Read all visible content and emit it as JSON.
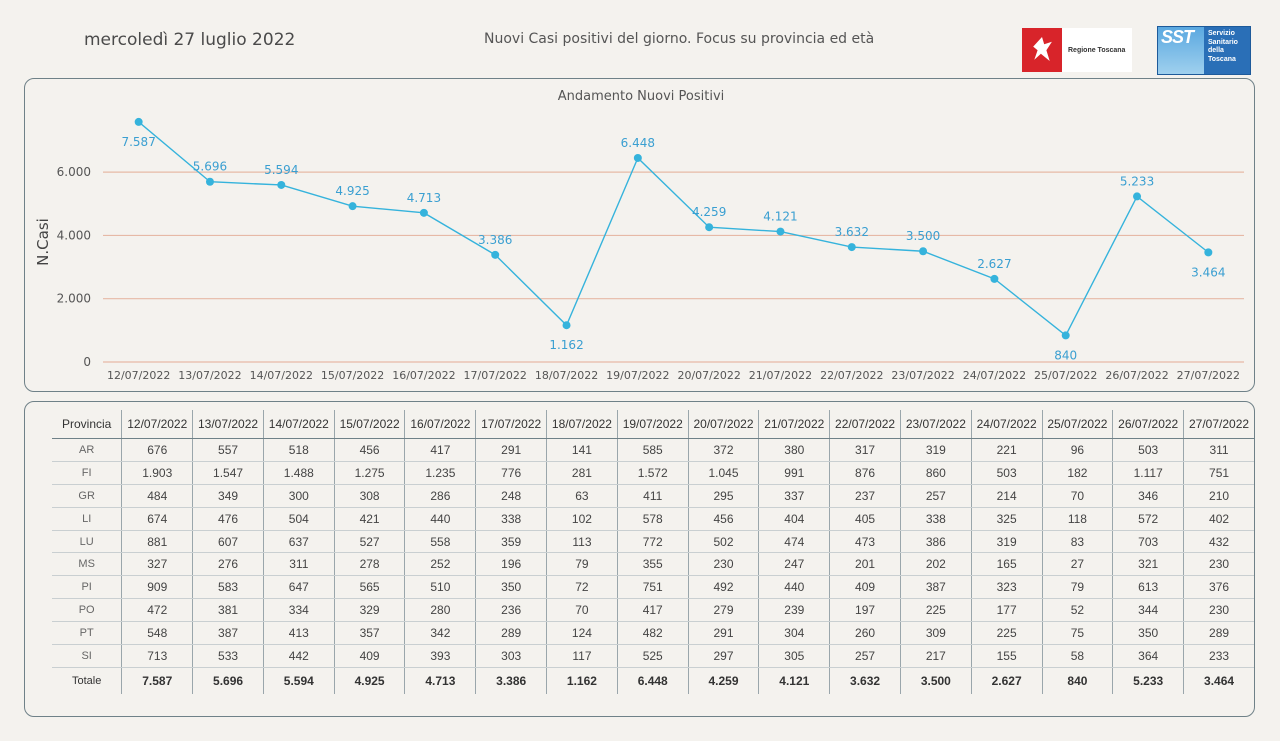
{
  "header": {
    "date": "mercoledì 27 luglio 2022",
    "title": "Nuovi Casi positivi del giorno. Focus su provincia ed età",
    "logo_toscana_text": "Regione Toscana",
    "logo_sst_abbr": "SST",
    "logo_sst_text": "Servizio Sanitario della Toscana"
  },
  "colors": {
    "line": "#35b3dc",
    "gridline": "#e6b9a6",
    "label": "#3a9fd1",
    "panel_border": "#6f8188"
  },
  "chart_data": {
    "type": "line",
    "title": "Andamento Nuovi Positivi",
    "ylabel": "N.Casi",
    "xlabel": "",
    "ylim": [
      0,
      7900
    ],
    "yticks": [
      0,
      2000,
      4000,
      6000
    ],
    "ytick_labels": [
      "0",
      "2.000",
      "4.000",
      "6.000"
    ],
    "grid": true,
    "categories": [
      "12/07/2022",
      "13/07/2022",
      "14/07/2022",
      "15/07/2022",
      "16/07/2022",
      "17/07/2022",
      "18/07/2022",
      "19/07/2022",
      "20/07/2022",
      "21/07/2022",
      "22/07/2022",
      "23/07/2022",
      "24/07/2022",
      "25/07/2022",
      "26/07/2022",
      "27/07/2022"
    ],
    "values": [
      7587,
      5696,
      5594,
      4925,
      4713,
      3386,
      1162,
      6448,
      4259,
      4121,
      3632,
      3500,
      2627,
      840,
      5233,
      3464
    ],
    "value_labels": [
      "7.587",
      "5.696",
      "5.594",
      "4.925",
      "4.713",
      "3.386",
      "1.162",
      "6.448",
      "4.259",
      "4.121",
      "3.632",
      "3.500",
      "2.627",
      "840",
      "5.233",
      "3.464"
    ]
  },
  "table": {
    "header_label": "Provincia",
    "dates": [
      "12/07/2022",
      "13/07/2022",
      "14/07/2022",
      "15/07/2022",
      "16/07/2022",
      "17/07/2022",
      "18/07/2022",
      "19/07/2022",
      "20/07/2022",
      "21/07/2022",
      "22/07/2022",
      "23/07/2022",
      "24/07/2022",
      "25/07/2022",
      "26/07/2022",
      "27/07/2022"
    ],
    "rows": [
      {
        "provincia": "AR",
        "values": [
          "676",
          "557",
          "518",
          "456",
          "417",
          "291",
          "141",
          "585",
          "372",
          "380",
          "317",
          "319",
          "221",
          "96",
          "503",
          "311"
        ]
      },
      {
        "provincia": "FI",
        "values": [
          "1.903",
          "1.547",
          "1.488",
          "1.275",
          "1.235",
          "776",
          "281",
          "1.572",
          "1.045",
          "991",
          "876",
          "860",
          "503",
          "182",
          "1.117",
          "751"
        ]
      },
      {
        "provincia": "GR",
        "values": [
          "484",
          "349",
          "300",
          "308",
          "286",
          "248",
          "63",
          "411",
          "295",
          "337",
          "237",
          "257",
          "214",
          "70",
          "346",
          "210"
        ]
      },
      {
        "provincia": "LI",
        "values": [
          "674",
          "476",
          "504",
          "421",
          "440",
          "338",
          "102",
          "578",
          "456",
          "404",
          "405",
          "338",
          "325",
          "118",
          "572",
          "402"
        ]
      },
      {
        "provincia": "LU",
        "values": [
          "881",
          "607",
          "637",
          "527",
          "558",
          "359",
          "113",
          "772",
          "502",
          "474",
          "473",
          "386",
          "319",
          "83",
          "703",
          "432"
        ]
      },
      {
        "provincia": "MS",
        "values": [
          "327",
          "276",
          "311",
          "278",
          "252",
          "196",
          "79",
          "355",
          "230",
          "247",
          "201",
          "202",
          "165",
          "27",
          "321",
          "230"
        ]
      },
      {
        "provincia": "PI",
        "values": [
          "909",
          "583",
          "647",
          "565",
          "510",
          "350",
          "72",
          "751",
          "492",
          "440",
          "409",
          "387",
          "323",
          "79",
          "613",
          "376"
        ]
      },
      {
        "provincia": "PO",
        "values": [
          "472",
          "381",
          "334",
          "329",
          "280",
          "236",
          "70",
          "417",
          "279",
          "239",
          "197",
          "225",
          "177",
          "52",
          "344",
          "230"
        ]
      },
      {
        "provincia": "PT",
        "values": [
          "548",
          "387",
          "413",
          "357",
          "342",
          "289",
          "124",
          "482",
          "291",
          "304",
          "260",
          "309",
          "225",
          "75",
          "350",
          "289"
        ]
      },
      {
        "provincia": "SI",
        "values": [
          "713",
          "533",
          "442",
          "409",
          "393",
          "303",
          "117",
          "525",
          "297",
          "305",
          "257",
          "217",
          "155",
          "58",
          "364",
          "233"
        ]
      }
    ],
    "total": {
      "label": "Totale",
      "values": [
        "7.587",
        "5.696",
        "5.594",
        "4.925",
        "4.713",
        "3.386",
        "1.162",
        "6.448",
        "4.259",
        "4.121",
        "3.632",
        "3.500",
        "2.627",
        "840",
        "5.233",
        "3.464"
      ]
    }
  }
}
